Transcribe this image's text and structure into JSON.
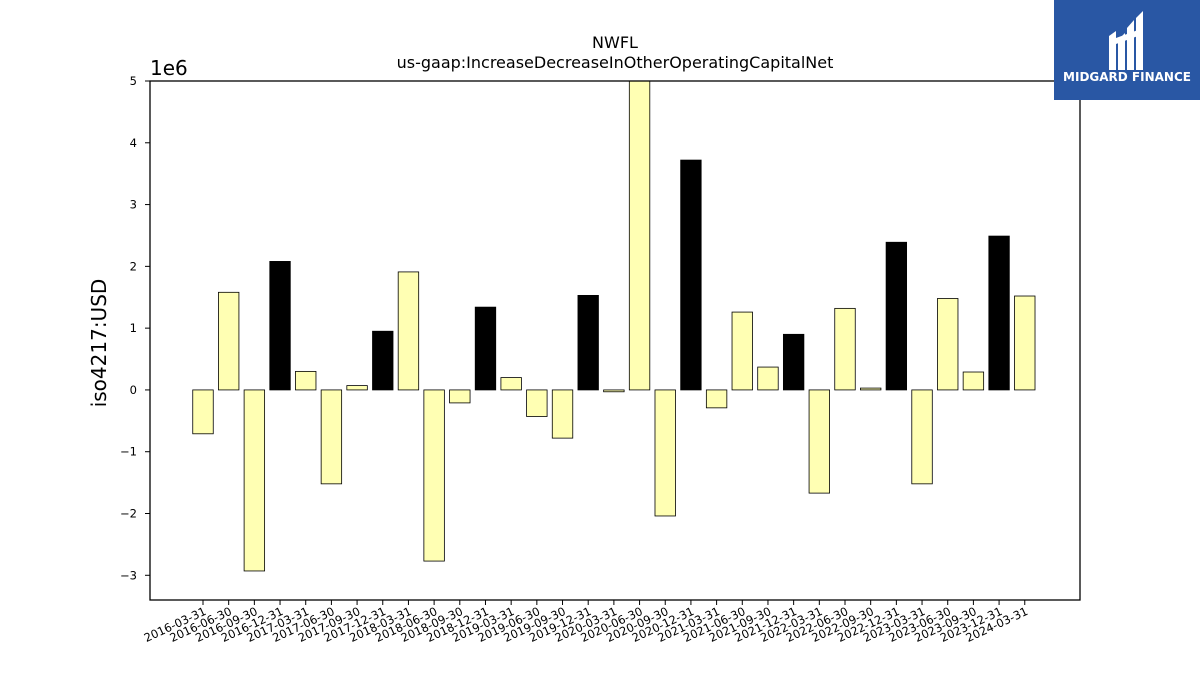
{
  "chart_data": {
    "type": "bar",
    "title": "NWFL",
    "subtitle": "us-gaap:IncreaseDecreaseInOtherOperatingCapitalNet",
    "ylabel": "iso4217:USD",
    "xlabel": "",
    "y_scale_label": "1e6",
    "ylim": [
      -3400000,
      5000000
    ],
    "yticks": [
      -3,
      -2,
      -1,
      0,
      1,
      2,
      3,
      4,
      5
    ],
    "ytick_labels": [
      "−3",
      "−2",
      "−1",
      "0",
      "1",
      "2",
      "3",
      "4",
      "5"
    ],
    "categories": [
      "2016-03-31",
      "2016-06-30",
      "2016-09-30",
      "2016-12-31",
      "2017-03-31",
      "2017-06-30",
      "2017-09-30",
      "2017-12-31",
      "2018-03-31",
      "2018-06-30",
      "2018-09-30",
      "2018-12-31",
      "2019-03-31",
      "2019-06-30",
      "2019-09-30",
      "2019-12-31",
      "2020-03-31",
      "2020-06-30",
      "2020-09-30",
      "2020-12-31",
      "2021-03-31",
      "2021-06-30",
      "2021-09-30",
      "2021-12-31",
      "2022-03-31",
      "2022-06-30",
      "2022-09-30",
      "2022-12-31",
      "2023-03-31",
      "2023-06-30",
      "2023-09-30",
      "2023-12-31",
      "2024-03-31"
    ],
    "values": [
      -710000,
      1580000,
      -2930000,
      2080000,
      300000,
      -1520000,
      70000,
      950000,
      1910000,
      -2770000,
      -210000,
      1340000,
      200000,
      -430000,
      -780000,
      1530000,
      -30000,
      5200000,
      -2040000,
      3720000,
      -290000,
      1260000,
      370000,
      900000,
      -1670000,
      1320000,
      30000,
      2390000,
      -1520000,
      1480000,
      290000,
      2490000,
      1520000
    ],
    "highlight_quarter": "12-31",
    "colors": {
      "bar_default": "#ffffb3",
      "bar_highlight": "#000000",
      "edge": "#000000"
    },
    "grid": false,
    "legend": "none"
  },
  "logo": {
    "text": "MIDGARD FINANCE",
    "bg_color": "#2957a4"
  }
}
